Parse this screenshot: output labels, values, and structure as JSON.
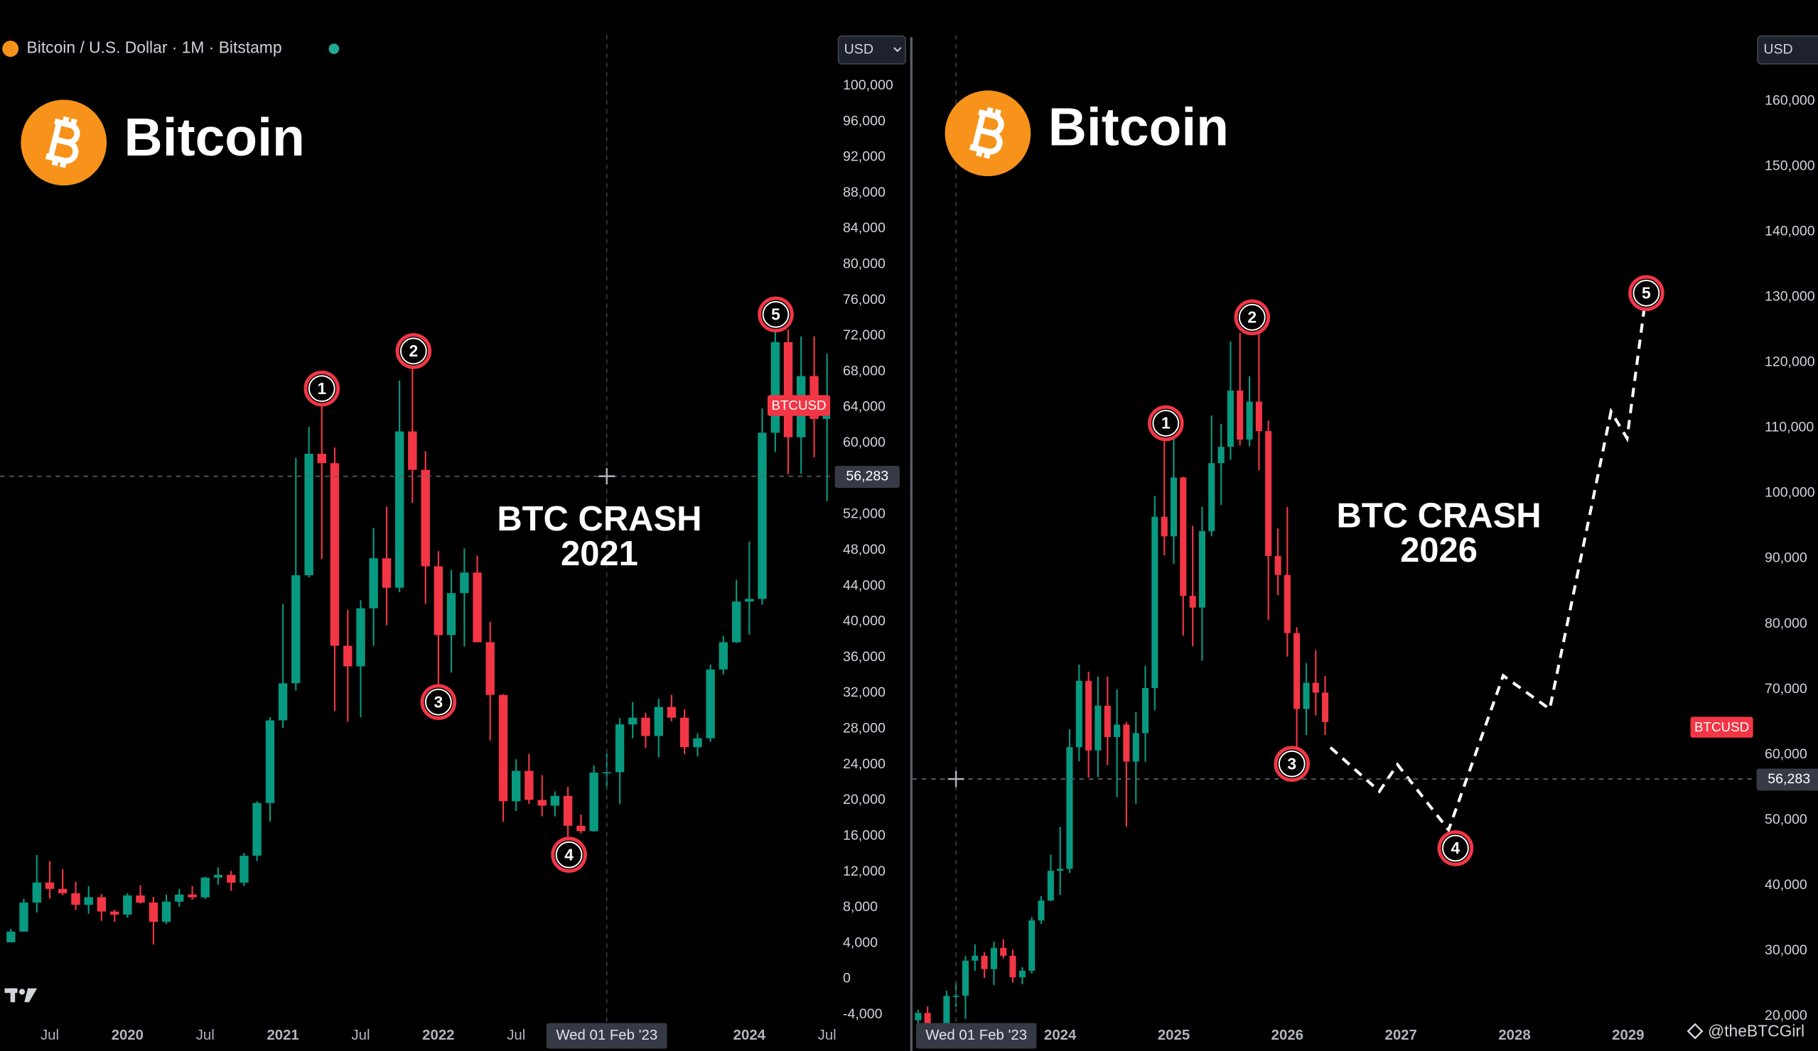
{
  "header": {
    "symbol": "Bitcoin / U.S. Dollar · 1M · Bitstamp"
  },
  "watermark": "@theBTCGirl",
  "chart_data": [
    {
      "type": "candlestick",
      "title": "Bitcoin",
      "annotation": [
        "BTC CRASH",
        "2021"
      ],
      "currency": "USD",
      "up_color": "#089981",
      "down_color": "#f23645",
      "xlim": [
        2019.18,
        2024.52
      ],
      "xticks": [
        {
          "value": 2019.5,
          "label": "Jul"
        },
        2020,
        {
          "value": 2020.5,
          "label": "Jul"
        },
        2021,
        {
          "value": 2021.5,
          "label": "Jul"
        },
        2022,
        {
          "value": 2022.5,
          "label": "Jul"
        },
        2024,
        {
          "value": 2024.5,
          "label": "Jul"
        }
      ],
      "ylim": [
        -5200,
        105700
      ],
      "yticks": [
        {
          "value": -4000,
          "label": "-4,000"
        },
        0,
        {
          "value": 4000,
          "label": "4,000"
        },
        {
          "value": 8000,
          "label": "8,000"
        },
        {
          "value": 12000,
          "label": "12,000"
        },
        {
          "value": 16000,
          "label": "16,000"
        },
        {
          "value": 20000,
          "label": "20,000"
        },
        {
          "value": 24000,
          "label": "24,000"
        },
        {
          "value": 28000,
          "label": "28,000"
        },
        {
          "value": 32000,
          "label": "32,000"
        },
        {
          "value": 36000,
          "label": "36,000"
        },
        {
          "value": 40000,
          "label": "40,000"
        },
        {
          "value": 44000,
          "label": "44,000"
        },
        {
          "value": 48000,
          "label": "48,000"
        },
        {
          "value": 52000,
          "label": "52,000"
        },
        {
          "value": 56000,
          "label": "56,000"
        },
        {
          "value": 60000,
          "label": "60,000"
        },
        {
          "value": 64000,
          "label": "64,000"
        },
        {
          "value": 68000,
          "label": "68,000"
        },
        {
          "value": 72000,
          "label": "72,000"
        },
        {
          "value": 76000,
          "label": "76,000"
        },
        {
          "value": 80000,
          "label": "80,000"
        },
        {
          "value": 84000,
          "label": "84,000"
        },
        {
          "value": 88000,
          "label": "88,000"
        },
        {
          "value": 92000,
          "label": "92,000"
        },
        {
          "value": 96000,
          "label": "96,000"
        },
        {
          "value": 100000,
          "label": "100,000"
        }
      ],
      "x": [
        2019.25,
        2019.333,
        2019.417,
        2019.5,
        2019.583,
        2019.667,
        2019.75,
        2019.833,
        2019.917,
        2020,
        2020.083,
        2020.167,
        2020.25,
        2020.333,
        2020.417,
        2020.5,
        2020.583,
        2020.667,
        2020.75,
        2020.833,
        2020.917,
        2021,
        2021.083,
        2021.167,
        2021.25,
        2021.333,
        2021.417,
        2021.5,
        2021.583,
        2021.667,
        2021.75,
        2021.833,
        2021.917,
        2022,
        2022.083,
        2022.167,
        2022.25,
        2022.333,
        2022.417,
        2022.5,
        2022.583,
        2022.667,
        2022.75,
        2022.833,
        2022.917,
        2023,
        2023.083,
        2023.167,
        2023.25,
        2023.333,
        2023.417,
        2023.5,
        2023.583,
        2023.667,
        2023.75,
        2023.833,
        2023.917,
        2024,
        2024.083,
        2024.167,
        2024.25,
        2024.333,
        2024.417,
        2024.5
      ],
      "open": [
        4100,
        5300,
        8550,
        10800,
        10080,
        9600,
        8300,
        9150,
        7550,
        7200,
        9350,
        8550,
        6400,
        8650,
        9450,
        9140,
        11350,
        11650,
        10780,
        13800,
        19700,
        28950,
        33100,
        45200,
        58800,
        57750,
        37300,
        35000,
        41500,
        47100,
        43800,
        61300,
        57000,
        46200,
        38500,
        43200,
        45500,
        37700,
        31800,
        19900,
        23300,
        20050,
        19400,
        20500,
        17150,
        16550,
        23100,
        23150,
        28500,
        29250,
        27200,
        30450,
        29250,
        25950,
        26950,
        34650,
        37700,
        42250,
        42550,
        61150,
        71300,
        60650,
        67500,
        62700
      ],
      "high": [
        5600,
        9000,
        13880,
        13200,
        12300,
        10900,
        10400,
        9500,
        7750,
        9600,
        10500,
        9200,
        9450,
        10100,
        10400,
        11450,
        12480,
        12100,
        14100,
        19900,
        29300,
        41950,
        58350,
        61800,
        64900,
        59500,
        41300,
        42400,
        50500,
        52900,
        67000,
        69000,
        59100,
        47900,
        45800,
        48200,
        47400,
        40000,
        31900,
        24600,
        25200,
        22800,
        21000,
        21500,
        18400,
        23900,
        25250,
        29200,
        31000,
        29800,
        31400,
        31800,
        30200,
        27500,
        35200,
        38400,
        44700,
        48950,
        63900,
        73800,
        72700,
        71950,
        71950,
        70000
      ],
      "low": [
        4100,
        5300,
        7450,
        9000,
        9400,
        7700,
        7300,
        6500,
        6400,
        6850,
        8450,
        3850,
        6150,
        8100,
        8850,
        8950,
        10550,
        9850,
        10400,
        13200,
        17600,
        28100,
        32300,
        44950,
        47000,
        30000,
        28800,
        29300,
        37300,
        39600,
        43300,
        53300,
        42000,
        33000,
        34300,
        37200,
        37700,
        26700,
        17600,
        18800,
        19600,
        18200,
        18200,
        15500,
        16300,
        16500,
        21400,
        19600,
        26950,
        25850,
        24800,
        28850,
        25150,
        24900,
        26550,
        34100,
        37600,
        38550,
        41900,
        59000,
        56500,
        56550,
        58400,
        53500
      ],
      "close": [
        5300,
        8550,
        10800,
        10080,
        9600,
        8300,
        9150,
        7550,
        7200,
        9350,
        8550,
        6400,
        8650,
        9450,
        9140,
        11350,
        11650,
        10780,
        13800,
        19700,
        28950,
        33100,
        45200,
        58800,
        57750,
        37300,
        35000,
        41500,
        47100,
        43800,
        61300,
        57000,
        46200,
        38500,
        43200,
        45500,
        37700,
        31800,
        19900,
        23300,
        20050,
        19400,
        20500,
        17150,
        16550,
        23100,
        23150,
        28500,
        29250,
        27200,
        30450,
        29250,
        25950,
        26950,
        34650,
        37700,
        42250,
        42550,
        61150,
        71300,
        60650,
        67500,
        62700,
        64600
      ],
      "last_price": {
        "value": 64200,
        "label": "BTCUSD"
      },
      "crosshair": {
        "value": 56283,
        "label": "56,283",
        "x": 2023.083,
        "x_label": "Wed 01 Feb '23"
      },
      "markers": [
        {
          "label": "1",
          "x": 2021.25,
          "y": 66100
        },
        {
          "label": "2",
          "x": 2021.84,
          "y": 70300
        },
        {
          "label": "3",
          "x": 2022.0,
          "y": 31000
        },
        {
          "label": "4",
          "x": 2022.84,
          "y": 13900
        },
        {
          "label": "5",
          "x": 2024.17,
          "y": 74400
        }
      ]
    },
    {
      "type": "candlestick",
      "title": "Bitcoin",
      "annotation": [
        "BTC CRASH",
        "2026"
      ],
      "currency": "USD",
      "up_color": "#089981",
      "down_color": "#f23645",
      "xlim": [
        2022.7,
        2030.1
      ],
      "xticks": [
        2024,
        2025,
        2026,
        2027,
        2028,
        2029
      ],
      "ylim": [
        18600,
        170100
      ],
      "yticks": [
        {
          "value": 20000,
          "label": "20,000"
        },
        {
          "value": 30000,
          "label": "30,000"
        },
        {
          "value": 40000,
          "label": "40,000"
        },
        {
          "value": 50000,
          "label": "50,000"
        },
        {
          "value": 60000,
          "label": "60,000"
        },
        {
          "value": 70000,
          "label": "70,000"
        },
        {
          "value": 80000,
          "label": "80,000"
        },
        {
          "value": 90000,
          "label": "90,000"
        },
        {
          "value": 100000,
          "label": "100,000"
        },
        {
          "value": 110000,
          "label": "110,000"
        },
        {
          "value": 120000,
          "label": "120,000"
        },
        {
          "value": 130000,
          "label": "130,000"
        },
        {
          "value": 140000,
          "label": "140,000"
        },
        {
          "value": 150000,
          "label": "150,000"
        },
        {
          "value": 160000,
          "label": "160,000"
        }
      ],
      "x": [
        2022.75,
        2022.833,
        2022.917,
        2023,
        2023.083,
        2023.167,
        2023.25,
        2023.333,
        2023.417,
        2023.5,
        2023.583,
        2023.667,
        2023.75,
        2023.833,
        2023.917,
        2024,
        2024.083,
        2024.167,
        2024.25,
        2024.333,
        2024.417,
        2024.5,
        2024.583,
        2024.667,
        2024.75,
        2024.833,
        2024.917,
        2025,
        2025.083,
        2025.167,
        2025.25,
        2025.333,
        2025.417,
        2025.5,
        2025.583,
        2025.667,
        2025.75,
        2025.833,
        2025.917,
        2026,
        2026.083,
        2026.167,
        2026.25,
        2026.333
      ],
      "open": [
        19400,
        20500,
        17150,
        16550,
        23100,
        23150,
        28500,
        29250,
        27200,
        30450,
        29250,
        25950,
        26950,
        34650,
        37700,
        42250,
        42550,
        61150,
        71300,
        60650,
        67500,
        62700,
        64600,
        58950,
        63300,
        70200,
        96400,
        93400,
        102400,
        84300,
        82500,
        94200,
        104600,
        107100,
        115700,
        108200,
        114000,
        109500,
        90400,
        87500,
        78600,
        67000,
        71000,
        69500
      ],
      "high": [
        21000,
        21500,
        18400,
        23900,
        25250,
        29200,
        31000,
        29800,
        31400,
        31800,
        30200,
        27500,
        35200,
        38400,
        44700,
        48950,
        63900,
        73800,
        72700,
        71950,
        71950,
        70000,
        65000,
        66500,
        73600,
        99600,
        108300,
        109400,
        102500,
        95000,
        97900,
        111900,
        110600,
        123200,
        124500,
        117900,
        126200,
        111100,
        94600,
        97900,
        79500,
        74000,
        76000,
        72000
      ],
      "low": [
        18200,
        15500,
        16300,
        16500,
        21400,
        19600,
        26950,
        25850,
        24800,
        28850,
        25150,
        24900,
        26550,
        34100,
        37600,
        38550,
        41900,
        59000,
        56500,
        56550,
        58400,
        53500,
        49000,
        52500,
        58900,
        66800,
        90500,
        89200,
        78200,
        76600,
        74400,
        93400,
        98200,
        105100,
        107300,
        107200,
        103500,
        80600,
        84400,
        75000,
        60000,
        63000,
        66000,
        63000
      ],
      "close": [
        20500,
        17150,
        16550,
        23100,
        23150,
        28500,
        29250,
        27200,
        30450,
        29250,
        25950,
        26950,
        34650,
        37700,
        42250,
        42550,
        61150,
        71300,
        60650,
        67500,
        62700,
        64600,
        58950,
        63300,
        70200,
        96400,
        93400,
        102400,
        84300,
        82500,
        94200,
        104600,
        107100,
        115700,
        108200,
        114000,
        109500,
        90400,
        87500,
        78600,
        67000,
        71000,
        69500,
        65000
      ],
      "last_price": {
        "value": 64200,
        "label": "BTCUSD"
      },
      "crosshair": {
        "value": 56283,
        "label": "56,283",
        "x": 2023.083,
        "x_label": "Wed 01 Feb '23"
      },
      "markers": [
        {
          "label": "1",
          "x": 2024.93,
          "y": 110700
        },
        {
          "label": "2",
          "x": 2025.69,
          "y": 126900
        },
        {
          "label": "3",
          "x": 2026.04,
          "y": 58600
        },
        {
          "label": "4",
          "x": 2027.48,
          "y": 45700
        },
        {
          "label": "5",
          "x": 2029.16,
          "y": 130600
        }
      ],
      "projection": {
        "color": "#ffffff",
        "x": [
          2026.38,
          2026.81,
          2026.97,
          2027.42,
          2027.9,
          2028.31,
          2028.85,
          2028.99,
          2029.16
        ],
        "values": [
          61100,
          54400,
          58500,
          48500,
          72100,
          67000,
          112500,
          108400,
          130600
        ]
      }
    }
  ]
}
